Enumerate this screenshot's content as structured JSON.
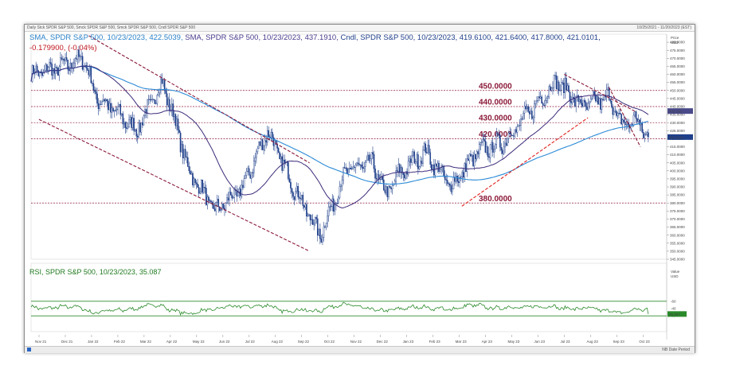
{
  "header": {
    "title_strip": "Daily Stck SPDR S&P 500, Smck SPDR S&P 500, Smck SPDR S&P 500, Cndl SPDR S&P 500",
    "date_range": "10/25/2021 - 11/20/2023 (EST)"
  },
  "legend": {
    "sma1_label": "SMA, SPDR S&P 500, 10/23/2023, 422.5039,",
    "sma2_label": "SMA, SPDR S&P 500, 10/23/2023, 437.1910,",
    "cndl_label": "Cndl, SPDR S&P 500, 10/23/2023, 419.6100, 421.6400, 417.8000, 421.0101,",
    "change_label": "-0.179900, (-0.04%)"
  },
  "rsi": {
    "label": "RSI, SPDR S&P 500, 10/23/2023, 35.087",
    "axis_title": "Value",
    "axis_unit": "USD",
    "current_value_tag": "35.087",
    "ticks": [
      "-60",
      "-40",
      "-20"
    ]
  },
  "price_axis": {
    "title": "Price",
    "unit": "USD",
    "current_price_tag": "421.0101",
    "sma_tag": "437.191"
  },
  "colors": {
    "sma200": "#2b8ad6",
    "sma50": "#3c2a7a",
    "candle": "#1f3f8a",
    "trend": "#8b1a3a",
    "redline": "#e0201c",
    "rsi": "#2a8a2a",
    "tag_blue": "#1f3f8a"
  },
  "chart_data": [
    {
      "type": "candlestick",
      "title": "Daily SPDR S&P 500",
      "x_tick_labels": [
        "Nov 21",
        "Dec 21",
        "Jan 22",
        "Feb 22",
        "Mar 22",
        "Apr 22",
        "May 22",
        "Jun 22",
        "Jul 22",
        "Aug 22",
        "Sep 22",
        "Oct 22",
        "Nov 22",
        "Dec 22",
        "Jan 23",
        "Feb 23",
        "Mar 23",
        "Apr 23",
        "May 23",
        "Jun 23",
        "Jul 23",
        "Aug 23",
        "Sep 23",
        "Oct 23",
        "Nov 23"
      ],
      "y_tick_labels": [
        "480.0000",
        "475.0000",
        "470.0000",
        "465.0000",
        "460.0000",
        "455.0000",
        "450.0000",
        "445.0000",
        "440.0000",
        "435.0000",
        "430.0000",
        "425.0000",
        "420.0000",
        "415.0000",
        "410.0000",
        "405.0000",
        "400.0000",
        "395.0000",
        "390.0000",
        "385.0000",
        "380.0000",
        "375.0000",
        "370.0000",
        "365.0000",
        "360.0000",
        "355.0000",
        "350.0000",
        "345.0000"
      ],
      "ylim": [
        345,
        485
      ],
      "close_path": [
        {
          "x": "Nov 21",
          "y": 460
        },
        {
          "x": "Dec 21",
          "y": 464
        },
        {
          "x": "Jan 22",
          "y": 470
        },
        {
          "x": "Jan 22",
          "y": 445
        },
        {
          "x": "Feb 22",
          "y": 440
        },
        {
          "x": "Mar 22",
          "y": 425
        },
        {
          "x": "Apr 22",
          "y": 455
        },
        {
          "x": "Apr 22",
          "y": 430
        },
        {
          "x": "May 22",
          "y": 400
        },
        {
          "x": "Jun 22",
          "y": 375
        },
        {
          "x": "Jul 22",
          "y": 388
        },
        {
          "x": "Aug 22",
          "y": 425
        },
        {
          "x": "Sep 22",
          "y": 390
        },
        {
          "x": "Oct 22",
          "y": 360
        },
        {
          "x": "Nov 22",
          "y": 400
        },
        {
          "x": "Dec 22",
          "y": 405
        },
        {
          "x": "Dec 22",
          "y": 385
        },
        {
          "x": "Jan 23",
          "y": 398
        },
        {
          "x": "Feb 23",
          "y": 412
        },
        {
          "x": "Mar 23",
          "y": 390
        },
        {
          "x": "Apr 23",
          "y": 412
        },
        {
          "x": "May 23",
          "y": 418
        },
        {
          "x": "Jun 23",
          "y": 437
        },
        {
          "x": "Jul 23",
          "y": 456
        },
        {
          "x": "Aug 23",
          "y": 440
        },
        {
          "x": "Sep 23",
          "y": 446
        },
        {
          "x": "Sep 23",
          "y": 428
        },
        {
          "x": "Oct 23",
          "y": 432
        },
        {
          "x": "Oct 23",
          "y": 421.0101
        }
      ],
      "series": [
        {
          "name": "SMA",
          "last": 422.5039
        },
        {
          "name": "SMA",
          "last": 437.191
        },
        {
          "name": "Cndl",
          "open": 419.61,
          "high": 421.64,
          "low": 417.8,
          "close": 421.0101
        }
      ],
      "horizontal_lines": [
        450,
        440,
        430,
        420,
        380
      ],
      "horizontal_line_labels": [
        "450.0000",
        "440.0000",
        "430.0000",
        "420.0000",
        "380.0000"
      ]
    },
    {
      "type": "line",
      "title": "RSI, SPDR S&P 500",
      "ylim": [
        0,
        100
      ],
      "reference_lines": [
        70,
        30
      ],
      "last": 35.087
    }
  ],
  "statusbar": {
    "text": "NB Date Period"
  }
}
